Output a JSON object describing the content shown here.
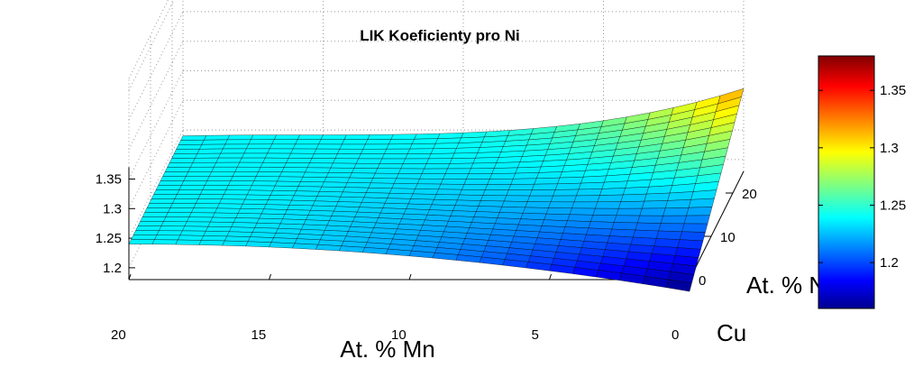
{
  "chart_data": {
    "type": "surface",
    "title": "LIK Koeficienty pro Ni",
    "xlabel": "At. % Mn",
    "ylabel": "At. % Ni",
    "corner_label": "Cu",
    "x_ticks": [
      20,
      15,
      10,
      5,
      0
    ],
    "y_ticks": [
      0,
      10,
      20
    ],
    "z_ticks": [
      1.2,
      1.25,
      1.3,
      1.35
    ],
    "colorbar_ticks": [
      1.2,
      1.25,
      1.3,
      1.35
    ],
    "xlim": [
      0,
      20
    ],
    "ylim": [
      0,
      25
    ],
    "zlim": [
      1.18,
      1.52
    ],
    "clim": [
      1.16,
      1.38
    ],
    "colormap": "jet",
    "grid": true,
    "surface_samples": [
      {
        "mn": 20,
        "ni": 0,
        "z": 1.24
      },
      {
        "mn": 10,
        "ni": 0,
        "z": 1.2
      },
      {
        "mn": 0,
        "ni": 0,
        "z": 1.16
      },
      {
        "mn": 20,
        "ni": 25,
        "z": 1.24
      },
      {
        "mn": 10,
        "ni": 25,
        "z": 1.25
      },
      {
        "mn": 0,
        "ni": 25,
        "z": 1.38
      }
    ]
  }
}
